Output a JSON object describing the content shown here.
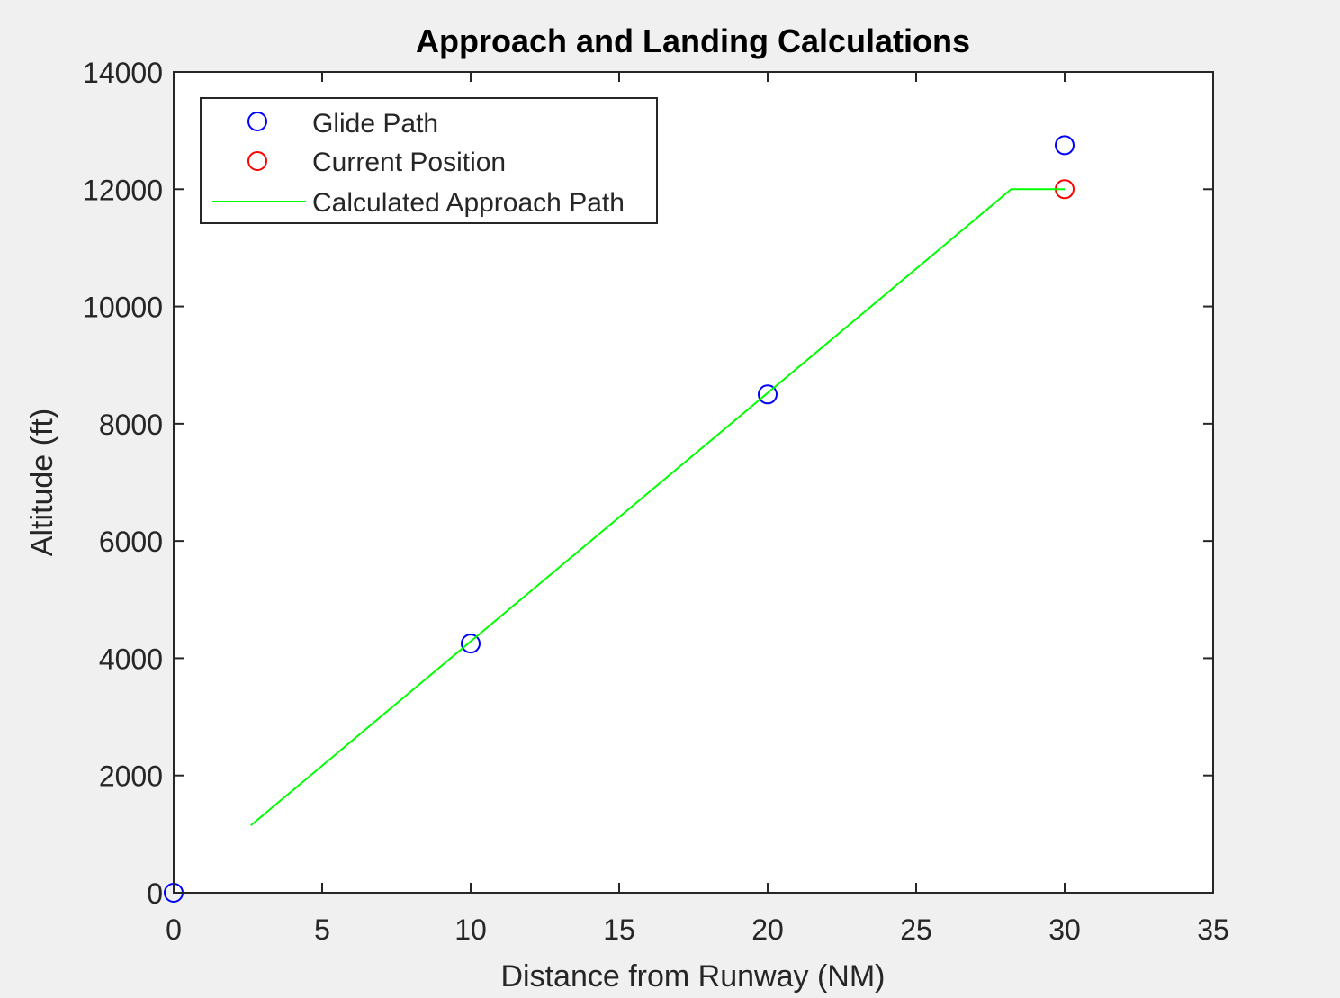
{
  "chart_data": {
    "type": "line",
    "title": "Approach and Landing Calculations",
    "xlabel": "Distance from Runway (NM)",
    "ylabel": "Altitude (ft)",
    "xlim": [
      0,
      35
    ],
    "ylim": [
      0,
      14000
    ],
    "x_ticks": [
      0,
      5,
      10,
      15,
      20,
      25,
      30,
      35
    ],
    "y_ticks": [
      0,
      2000,
      4000,
      6000,
      8000,
      10000,
      12000,
      14000
    ],
    "grid": false,
    "legend_position": "top-left",
    "series": [
      {
        "name": "Glide Path",
        "kind": "markers",
        "marker": "circle",
        "color": "#0000ff",
        "x": [
          0,
          10,
          20,
          30
        ],
        "y": [
          0,
          4250,
          8500,
          12750
        ]
      },
      {
        "name": "Current Position",
        "kind": "markers",
        "marker": "circle",
        "color": "#ff0000",
        "x": [
          30
        ],
        "y": [
          12000
        ]
      },
      {
        "name": "Calculated Approach Path",
        "kind": "line",
        "color": "#00ff00",
        "x": [
          2.6,
          28.2,
          30
        ],
        "y": [
          1150,
          12000,
          12000
        ]
      }
    ]
  }
}
